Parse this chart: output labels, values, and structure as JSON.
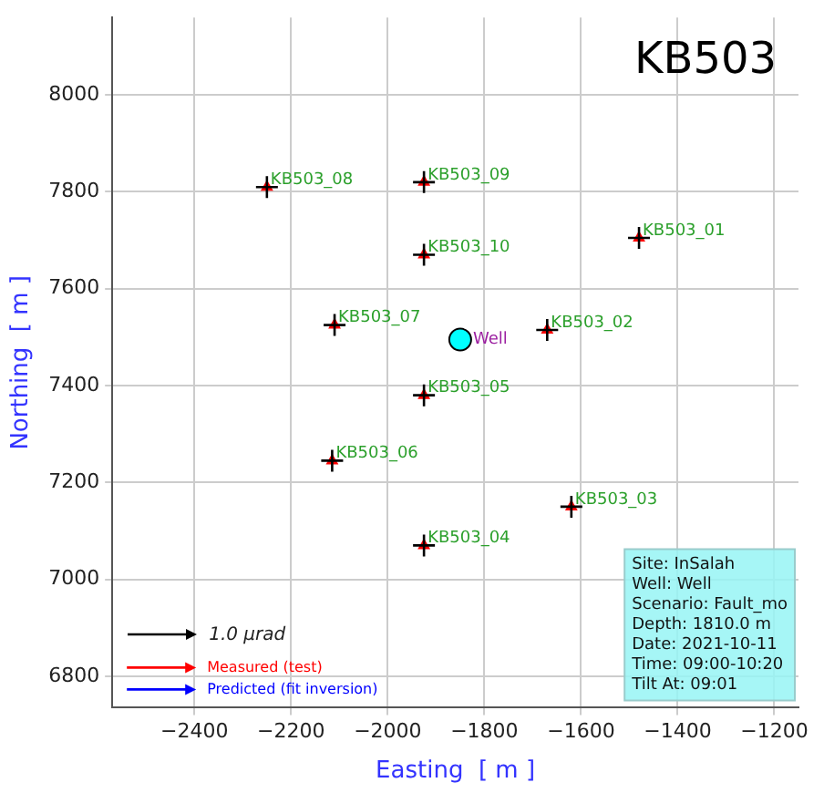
{
  "chart_data": {
    "type": "scatter",
    "title": "KB503",
    "xlabel": "Easting  [ m ]",
    "ylabel": "Northing  [ m ]",
    "xlim": [
      -2570,
      -1150
    ],
    "ylim": [
      6735,
      8160
    ],
    "xticks": [
      {
        "value": -2400,
        "label": "−2400"
      },
      {
        "value": -2200,
        "label": "−2200"
      },
      {
        "value": -2000,
        "label": "−2000"
      },
      {
        "value": -1800,
        "label": "−1800"
      },
      {
        "value": -1600,
        "label": "−1600"
      },
      {
        "value": -1400,
        "label": "−1400"
      },
      {
        "value": -1200,
        "label": "−1200"
      }
    ],
    "yticks": [
      6800,
      7000,
      7200,
      7400,
      7600,
      7800,
      8000
    ],
    "grid": true,
    "legend": "bottom left",
    "series": [
      {
        "type": "scatter",
        "marker": "cross",
        "color": "#000000",
        "x": [
          -1480,
          -1670,
          -1620,
          -1925,
          -1925,
          -2115,
          -2110,
          -2250,
          -1925,
          -1925
        ],
        "values": [
          7705,
          7515,
          7150,
          7070,
          7380,
          7245,
          7525,
          7810,
          7820,
          7670
        ],
        "value_labels": [
          "KB503_01",
          "KB503_02",
          "KB503_03",
          "KB503_04",
          "KB503_05",
          "KB503_06",
          "KB503_07",
          "KB503_08",
          "KB503_09",
          "KB503_10"
        ]
      },
      {
        "type": "scatter",
        "name": "Measured (test)",
        "marker": "triangle",
        "color": "#ff0000",
        "x": [
          -1480,
          -1670,
          -1620,
          -1925,
          -1925,
          -2115,
          -2110,
          -2250,
          -1925,
          -1925
        ],
        "values": [
          7705,
          7515,
          7150,
          7070,
          7380,
          7245,
          7525,
          7810,
          7820,
          7670
        ]
      },
      {
        "type": "scatter",
        "name": "Predicted (fit inversion)",
        "marker": "triangle",
        "color": "#0000ff"
      },
      {
        "type": "scatter",
        "marker": "circle",
        "color": "#00ffff",
        "x": [
          -1850
        ],
        "values": [
          7495
        ],
        "value_labels": [
          "Well"
        ]
      }
    ],
    "annotations": [
      "1.0 μrad",
      "Site: InSalah",
      "Well: Well",
      "Scenario: Fault_mo",
      "Depth: 1810.0 m",
      "Date: 2021-10-11",
      "Time: 09:00-10:20",
      "Tilt At: 09:01"
    ]
  }
}
